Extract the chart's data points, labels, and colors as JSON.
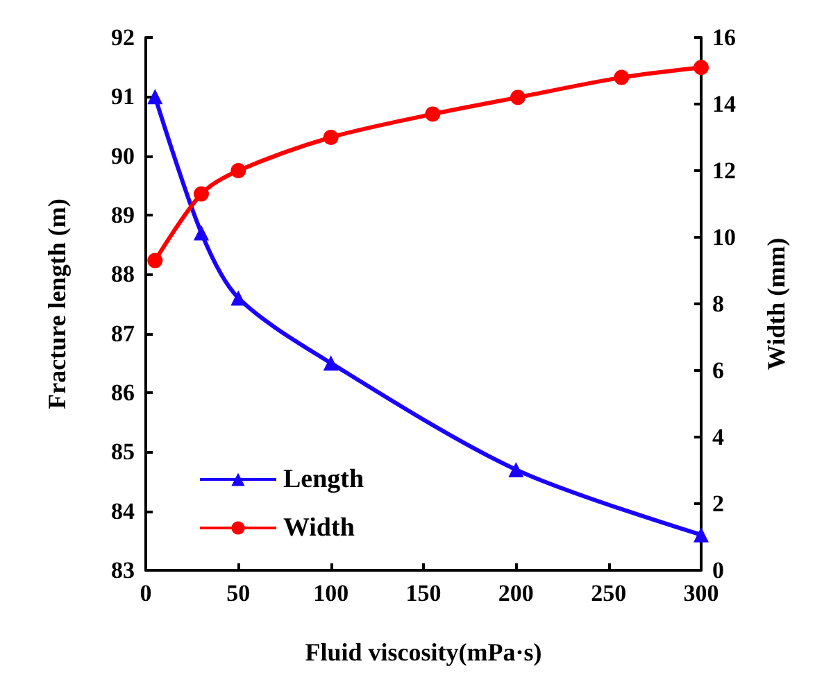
{
  "chart_data": {
    "type": "line",
    "xlabel": "Fluid viscosity(mPa·s)",
    "ylabel": "Fracture length (m)",
    "y2label": "Width (mm)",
    "xlim": [
      0,
      300
    ],
    "xticks": [
      0,
      50,
      100,
      150,
      200,
      250,
      300
    ],
    "ylim": [
      83,
      92
    ],
    "yticks": [
      83,
      84,
      85,
      86,
      87,
      88,
      89,
      90,
      91,
      92
    ],
    "y2lim": [
      0,
      16
    ],
    "y2ticks": [
      0,
      2,
      4,
      6,
      8,
      10,
      12,
      14,
      16
    ],
    "series": [
      {
        "name": "Length",
        "color": "#1a00ff",
        "marker": "triangle",
        "x": [
          5,
          30,
          50,
          100,
          200,
          300
        ],
        "values": [
          91.0,
          88.7,
          87.6,
          86.5,
          84.7,
          83.6
        ]
      },
      {
        "name": "Width",
        "color": "#ff0000",
        "marker": "circle",
        "axis": "y2",
        "x": [
          5,
          30,
          50,
          100,
          155,
          201,
          257,
          300
        ],
        "values": [
          9.3,
          11.3,
          12.0,
          13.0,
          13.7,
          14.2,
          14.8,
          15.1
        ]
      }
    ],
    "grid": false,
    "legend": "bottom left",
    "line_style": "solid"
  }
}
